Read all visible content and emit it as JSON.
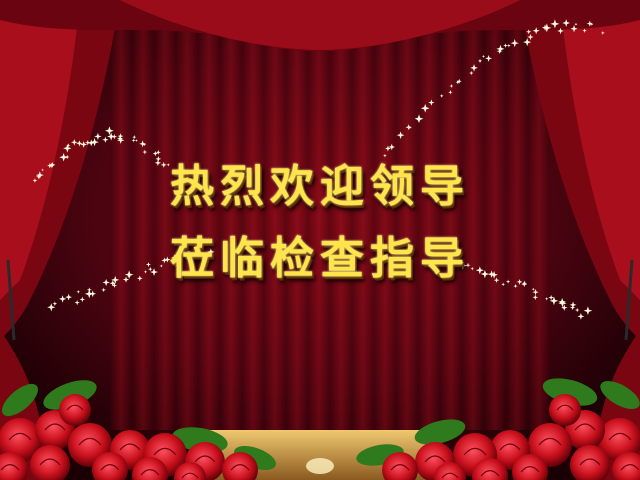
{
  "banner": {
    "line1": "热烈欢迎领导",
    "line2": "莅临检查指导"
  },
  "colors": {
    "curtain": "#8b0a14",
    "backdrop": "#5a0510",
    "text": "#ffe44a",
    "rose": "#d4121e",
    "leaf": "#2e7a1c",
    "stage_floor": "#c99a4a"
  }
}
